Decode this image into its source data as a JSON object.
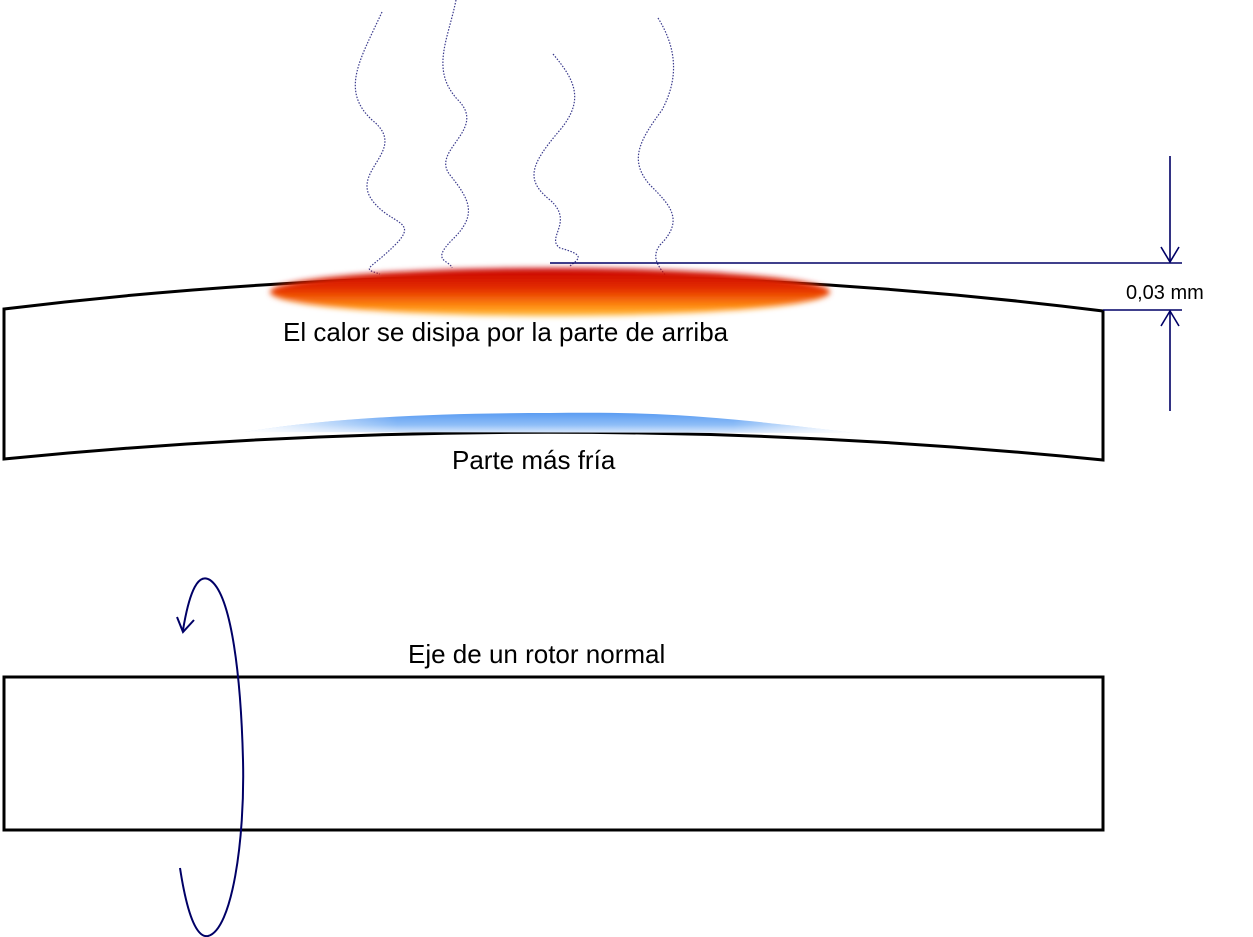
{
  "labels": {
    "heat": "El calor se disipa por la parte de arriba",
    "cold": "Parte más fría",
    "dimension": "0,03 mm",
    "normal_shaft": "Eje de un rotor normal"
  },
  "colors": {
    "outline": "#000000",
    "dimension_lines": "#000066",
    "heat_lines": "#3a3a8c",
    "hot_core": "#cc0000",
    "hot_edge": "#ffb020",
    "cold": "#4a90f0",
    "rotation_arrow": "#000066"
  },
  "icons": {
    "rotation": "rotation-arrow-icon",
    "heat": "heat-wave-icon"
  }
}
